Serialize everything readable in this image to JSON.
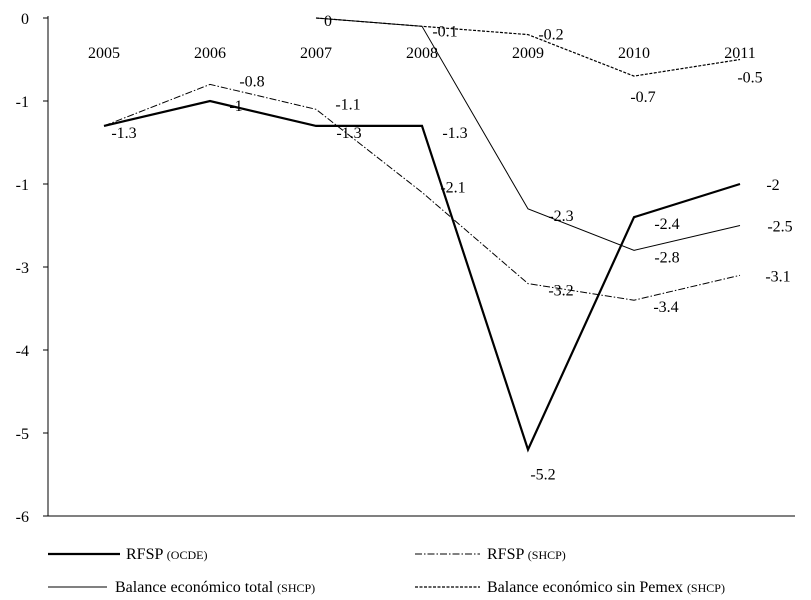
{
  "chart_data": {
    "type": "line",
    "title": "",
    "xlabel": "",
    "ylabel": "",
    "grid": false,
    "legend_position": "bottom",
    "x": [
      "2005",
      "2006",
      "2007",
      "2008",
      "2009",
      "2010",
      "2011"
    ],
    "y_ticks": [
      "0",
      "-1",
      "-1",
      "-3",
      "-4",
      "-5",
      "-6"
    ],
    "ylim": [
      -6,
      0
    ],
    "series": [
      {
        "name": "RFSP",
        "name_suffix": "(OCDE)",
        "color": "#000000",
        "dash": "solid",
        "width": 2.2,
        "points": [
          {
            "x": "2005",
            "y": -1.3,
            "label": "-1.3"
          },
          {
            "x": "2006",
            "y": -1.0,
            "label": "-1"
          },
          {
            "x": "2007",
            "y": -1.3,
            "label": "-1.3"
          },
          {
            "x": "2008",
            "y": -1.3,
            "label": "-1.3"
          },
          {
            "x": "2009",
            "y": -5.2,
            "label": "-5.2"
          },
          {
            "x": "2010",
            "y": -2.4,
            "label": "-2.4"
          },
          {
            "x": "2011",
            "y": -2.0,
            "label": "-2"
          }
        ]
      },
      {
        "name": "RFSP",
        "name_suffix": "(SHCP)",
        "color": "#000000",
        "dash": "dashdot",
        "width": 1.0,
        "points": [
          {
            "x": "2005",
            "y": -1.3,
            "label": ""
          },
          {
            "x": "2006",
            "y": -0.8,
            "label": "-0.8"
          },
          {
            "x": "2007",
            "y": -1.1,
            "label": "-1.1"
          },
          {
            "x": "2008",
            "y": -2.1,
            "label": "-2.1"
          },
          {
            "x": "2009",
            "y": -3.2,
            "label": "-3.2"
          },
          {
            "x": "2010",
            "y": -3.4,
            "label": "-3.4"
          },
          {
            "x": "2011",
            "y": -3.1,
            "label": "-3.1"
          }
        ]
      },
      {
        "name": "Balance económico total",
        "name_suffix": "(SHCP)",
        "color": "#000000",
        "dash": "solid",
        "width": 1.0,
        "points": [
          {
            "x": "2007",
            "y": 0.0,
            "label": ""
          },
          {
            "x": "2008",
            "y": -0.1,
            "label": ""
          },
          {
            "x": "2009",
            "y": -2.3,
            "label": "-2.3"
          },
          {
            "x": "2010",
            "y": -2.8,
            "label": "-2.8"
          },
          {
            "x": "2011",
            "y": -2.5,
            "label": "-2.5"
          }
        ]
      },
      {
        "name": "Balance económico sin Pemex",
        "name_suffix": "(SHCP)",
        "color": "#000000",
        "dash": "dotted",
        "width": 1.2,
        "points": [
          {
            "x": "2007",
            "y": 0.0,
            "label": "0"
          },
          {
            "x": "2008",
            "y": -0.1,
            "label": "-0.1"
          },
          {
            "x": "2009",
            "y": -0.2,
            "label": "-0.2"
          },
          {
            "x": "2010",
            "y": -0.7,
            "label": "-0.7"
          },
          {
            "x": "2011",
            "y": -0.5,
            "label": "-0.5"
          }
        ]
      }
    ]
  }
}
